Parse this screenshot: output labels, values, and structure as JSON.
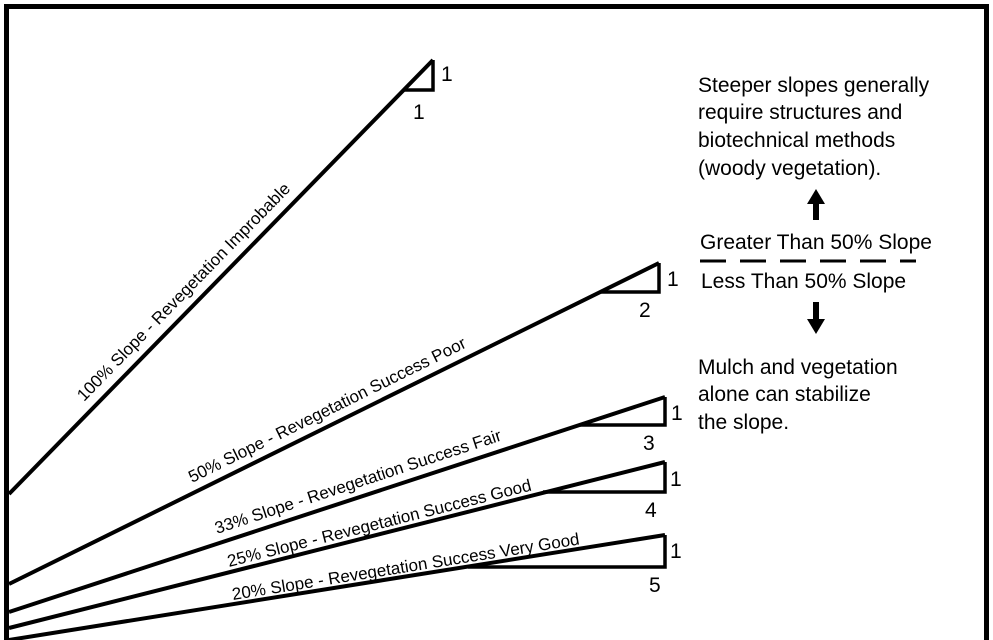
{
  "slopes": [
    {
      "label": "100% Slope - Revegetation Improbable",
      "rise": "1",
      "run": "1"
    },
    {
      "label": "50% Slope  - Revegetation Success Poor",
      "rise": "1",
      "run": "2"
    },
    {
      "label": "33% Slope  - Revegetation Success Fair",
      "rise": "1",
      "run": "3"
    },
    {
      "label": "25% Slope - Revegetation Success Good",
      "rise": "1",
      "run": "4"
    },
    {
      "label": "20% Slope - Revegetation Success Very Good",
      "rise": "1",
      "run": "5"
    }
  ],
  "notes": {
    "steep_lines": [
      "Steeper slopes generally",
      "require structures and",
      "biotechnical methods",
      "(woody vegetation)."
    ],
    "greater_than": "Greater Than 50% Slope",
    "less_than": "Less Than 50% Slope",
    "gentle_lines": [
      "Mulch and vegetation",
      "alone can stabilize",
      "the slope."
    ]
  }
}
